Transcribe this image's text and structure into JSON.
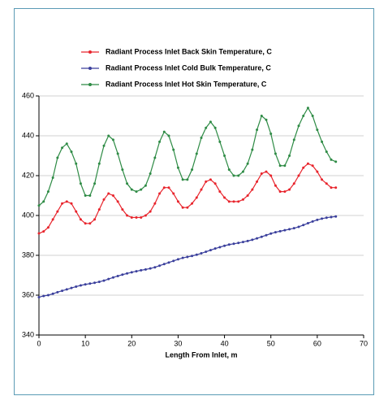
{
  "chart_data": {
    "type": "line",
    "xlabel": "Length From Inlet, m",
    "x": [
      0,
      1,
      2,
      3,
      4,
      5,
      6,
      7,
      8,
      9,
      10,
      11,
      12,
      13,
      14,
      15,
      16,
      17,
      18,
      19,
      20,
      21,
      22,
      23,
      24,
      25,
      26,
      27,
      28,
      29,
      30,
      31,
      32,
      33,
      34,
      35,
      36,
      37,
      38,
      39,
      40,
      41,
      42,
      43,
      44,
      45,
      46,
      47,
      48,
      49,
      50,
      51,
      52,
      53,
      54,
      55,
      56,
      57,
      58,
      59,
      60,
      61,
      62,
      63,
      64
    ],
    "series": [
      {
        "name": "Radiant Process Inlet Back Skin Temperature, C",
        "color": "#e8242c",
        "values": [
          391,
          392,
          394,
          398,
          402,
          406,
          407,
          406,
          402,
          398,
          396,
          396,
          398,
          403,
          408,
          411,
          410,
          407,
          403,
          400,
          399,
          399,
          399,
          400,
          402,
          406,
          411,
          414,
          414,
          411,
          407,
          404,
          404,
          406,
          409,
          413,
          417,
          418,
          416,
          412,
          409,
          407,
          407,
          407,
          408,
          410,
          413,
          417,
          421,
          422,
          420,
          415,
          412,
          412,
          413,
          416,
          420,
          424,
          426,
          425,
          422,
          418,
          416,
          414,
          414
        ]
      },
      {
        "name": "Radiant Process Inlet Cold Bulk Temperature, C",
        "color": "#3a3f9c",
        "values": [
          359.0,
          359.6,
          360.0,
          360.7,
          361.5,
          362.2,
          362.9,
          363.6,
          364.3,
          364.9,
          365.4,
          365.8,
          366.2,
          366.7,
          367.3,
          368.1,
          368.9,
          369.6,
          370.3,
          370.9,
          371.5,
          372.0,
          372.5,
          372.9,
          373.4,
          374.0,
          374.8,
          375.6,
          376.4,
          377.2,
          378.0,
          378.7,
          379.2,
          379.7,
          380.3,
          381.0,
          381.8,
          382.6,
          383.4,
          384.1,
          384.8,
          385.4,
          385.8,
          386.2,
          386.7,
          387.2,
          387.8,
          388.5,
          389.3,
          390.1,
          390.9,
          391.6,
          392.1,
          392.6,
          393.1,
          393.6,
          394.3,
          395.2,
          396.1,
          397.0,
          397.8,
          398.4,
          398.9,
          399.2,
          399.5
        ]
      },
      {
        "name": "Radiant Process Inlet Hot Skin Temperature, C",
        "color": "#2e8b45",
        "values": [
          405,
          407,
          412,
          419,
          429,
          434,
          436,
          432,
          426,
          416,
          410,
          410,
          416,
          426,
          435,
          440,
          438,
          431,
          423,
          416,
          413,
          412,
          413,
          415,
          421,
          429,
          437,
          442,
          440,
          433,
          424,
          418,
          418,
          423,
          431,
          439,
          444,
          447,
          444,
          437,
          430,
          423,
          420,
          420,
          422,
          426,
          433,
          443,
          450,
          448,
          441,
          431,
          425,
          425,
          430,
          438,
          445,
          450,
          454,
          450,
          443,
          437,
          432,
          428,
          427
        ]
      }
    ],
    "xlim": [
      0,
      70
    ],
    "xticks": [
      0,
      10,
      20,
      30,
      40,
      50,
      60,
      70
    ],
    "ylim": [
      340,
      460
    ],
    "yticks": [
      340,
      360,
      380,
      400,
      420,
      440,
      460
    ],
    "grid": true
  }
}
